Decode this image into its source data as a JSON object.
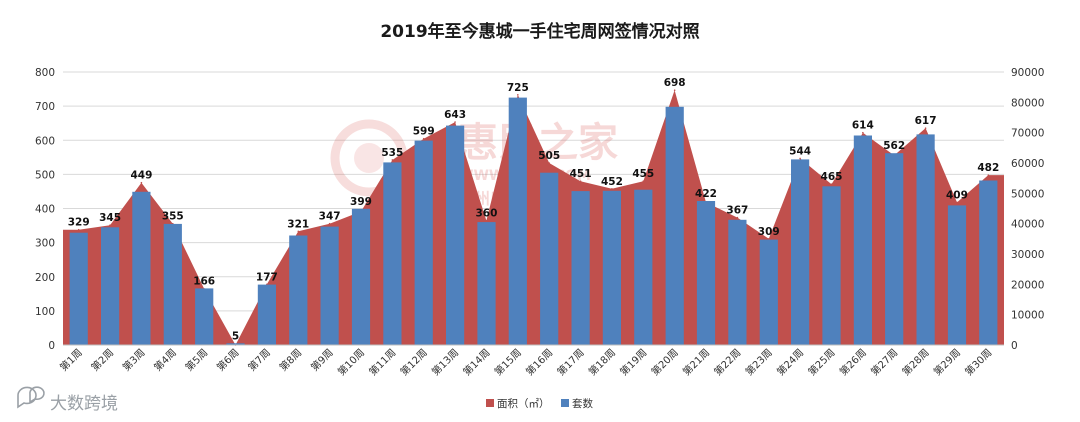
{
  "chart_data": {
    "type": "bar",
    "title": "2019年至今惠城一手住宅周网签情况对照",
    "categories": [
      "第1周",
      "第2周",
      "第3周",
      "第4周",
      "第5周",
      "第6周",
      "第7周",
      "第8周",
      "第9周",
      "第10周",
      "第11周",
      "第12周",
      "第13周",
      "第14周",
      "第15周",
      "第16周",
      "第17周",
      "第18周",
      "第19周",
      "第20周",
      "第21周",
      "第22周",
      "第23周",
      "第24周",
      "第25周",
      "第26周",
      "第27周",
      "第28周",
      "第29周",
      "第30周"
    ],
    "series": [
      {
        "name": "面积（㎡）",
        "render": "area",
        "axis": "right",
        "color": "#c0504d",
        "values": [
          38000,
          39500,
          53500,
          40000,
          18500,
          0,
          20000,
          37500,
          40000,
          44000,
          61000,
          68000,
          73500,
          41000,
          82500,
          60000,
          54000,
          51500,
          54000,
          84000,
          47000,
          42000,
          35000,
          61500,
          53000,
          70000,
          62500,
          71500,
          47000,
          56000
        ]
      },
      {
        "name": "套数",
        "render": "bar",
        "axis": "left",
        "color": "#4f81bd",
        "values": [
          329,
          345,
          449,
          355,
          166,
          5,
          177,
          321,
          347,
          399,
          535,
          599,
          643,
          360,
          725,
          505,
          451,
          452,
          455,
          698,
          422,
          367,
          309,
          544,
          465,
          614,
          562,
          617,
          409,
          482
        ],
        "data_labels": [
          "329",
          "345",
          "449",
          "355",
          "166",
          "5",
          "177",
          "321",
          "347",
          "399",
          "535",
          "599",
          "643",
          "360",
          "725",
          "505",
          "451",
          "452",
          "455",
          "698",
          "422",
          "367",
          "309",
          "544",
          "465",
          "614",
          "562",
          "617",
          "409",
          "482"
        ]
      }
    ],
    "y_left": {
      "min": 0,
      "max": 800,
      "step": 100,
      "ticks": [
        "0",
        "100",
        "200",
        "300",
        "400",
        "500",
        "600",
        "700",
        "800"
      ]
    },
    "y_right": {
      "min": 0,
      "max": 90000,
      "step": 10000,
      "ticks": [
        "0",
        "10000",
        "20000",
        "30000",
        "40000",
        "50000",
        "60000",
        "70000",
        "80000",
        "90000"
      ]
    },
    "grid": true,
    "legend_position": "bottom"
  },
  "watermark": {
    "brand": "惠民之家",
    "url": "WWW.HMZJ.COM",
    "tagline": "惠州房地产权威媒体"
  },
  "corner_logo": {
    "text": "大数跨境",
    "icon": "chat-bubble-logo-icon"
  }
}
